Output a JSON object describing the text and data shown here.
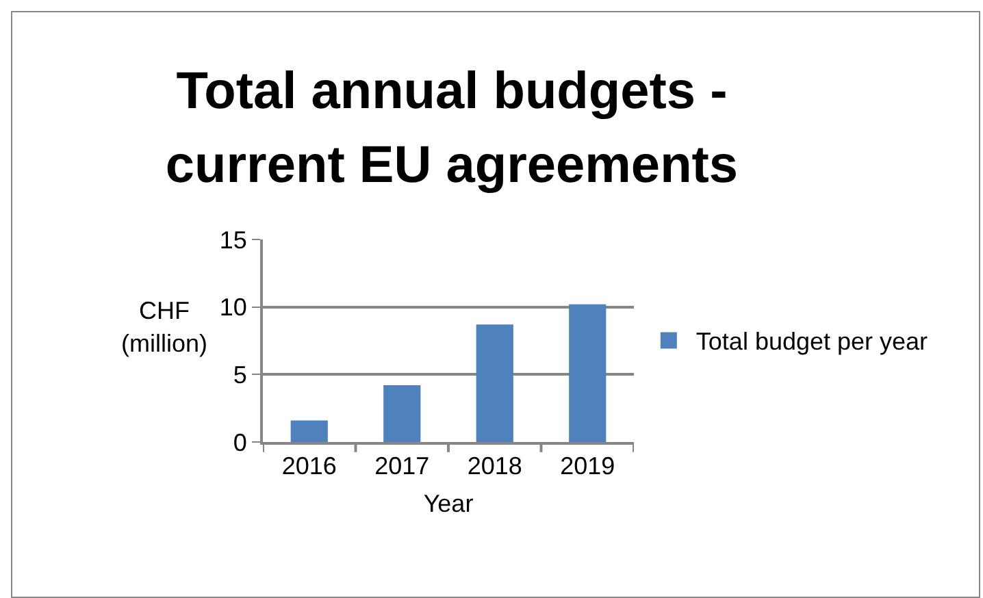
{
  "chart_data": {
    "type": "bar",
    "title": "Total annual budgets - current EU agreements",
    "xlabel": "Year",
    "ylabel": "CHF (million)",
    "categories": [
      "2016",
      "2017",
      "2018",
      "2019"
    ],
    "series": [
      {
        "name": "Total budget per year",
        "color": "#4f81bd",
        "values": [
          1.6,
          4.2,
          8.7,
          10.2
        ]
      }
    ],
    "ylim": [
      0,
      15
    ],
    "yticks": [
      0,
      5,
      10,
      15
    ],
    "grid": "y",
    "legend": "right"
  }
}
